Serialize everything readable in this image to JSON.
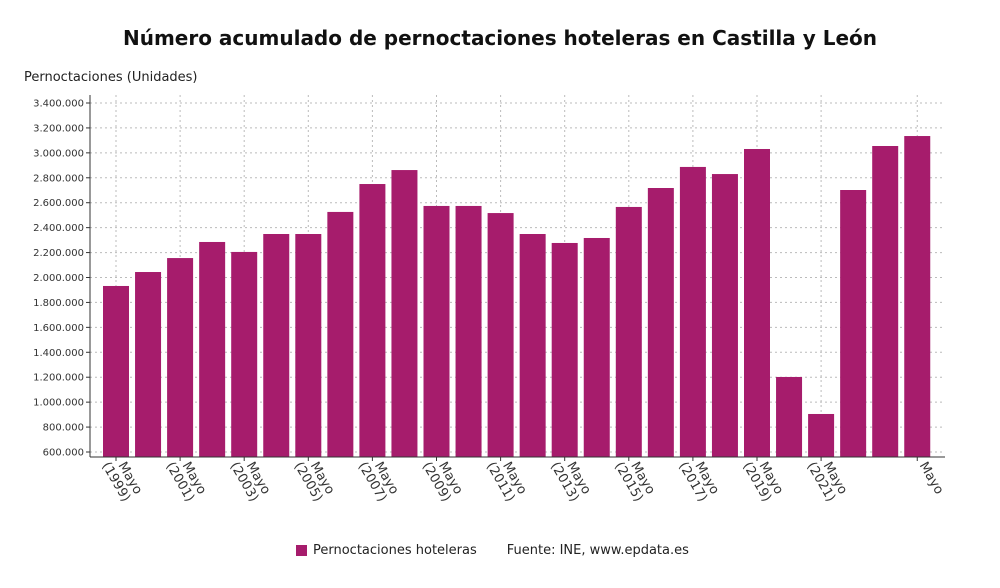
{
  "chart_data": {
    "type": "bar",
    "title": "Número acumulado de pernoctaciones hoteleras en Castilla y León",
    "ylabel": "Pernoctaciones (Unidades)",
    "xlabel": "",
    "ylim": [
      600000,
      3400000
    ],
    "yticks": [
      "600.000",
      "800.000",
      "1.000.000",
      "1.200.000",
      "1.400.000",
      "1.600.000",
      "1.800.000",
      "2.000.000",
      "2.200.000",
      "2.400.000",
      "2.600.000",
      "2.800.000",
      "3.000.000",
      "3.200.000",
      "3.400.000"
    ],
    "categories": [
      "Mayo (1999)",
      "",
      "Mayo (2001)",
      "",
      "Mayo (2003)",
      "",
      "Mayo (2005)",
      "",
      "Mayo (2007)",
      "",
      "Mayo (2009)",
      "",
      "Mayo (2011)",
      "",
      "Mayo (2013)",
      "",
      "Mayo (2015)",
      "",
      "Mayo (2017)",
      "",
      "Mayo (2019)",
      "",
      "Mayo (2021)",
      "",
      "",
      "Mayo"
    ],
    "series": [
      {
        "name": "Pernoctaciones hoteleras",
        "color": "#a61c6c",
        "values": [
          1932000,
          2044000,
          2156000,
          2285000,
          2205000,
          2349000,
          2349000,
          2526000,
          2750000,
          2862000,
          2574000,
          2574000,
          2517000,
          2349000,
          2277000,
          2317000,
          2566000,
          2718000,
          2887000,
          2830000,
          3031000,
          1202000,
          905000,
          2702000,
          3055000,
          3135000
        ]
      }
    ],
    "grid": true,
    "legend": "bottom"
  },
  "legend": {
    "label": "Pernoctaciones hoteleras",
    "source": "Fuente: INE, www.epdata.es"
  }
}
